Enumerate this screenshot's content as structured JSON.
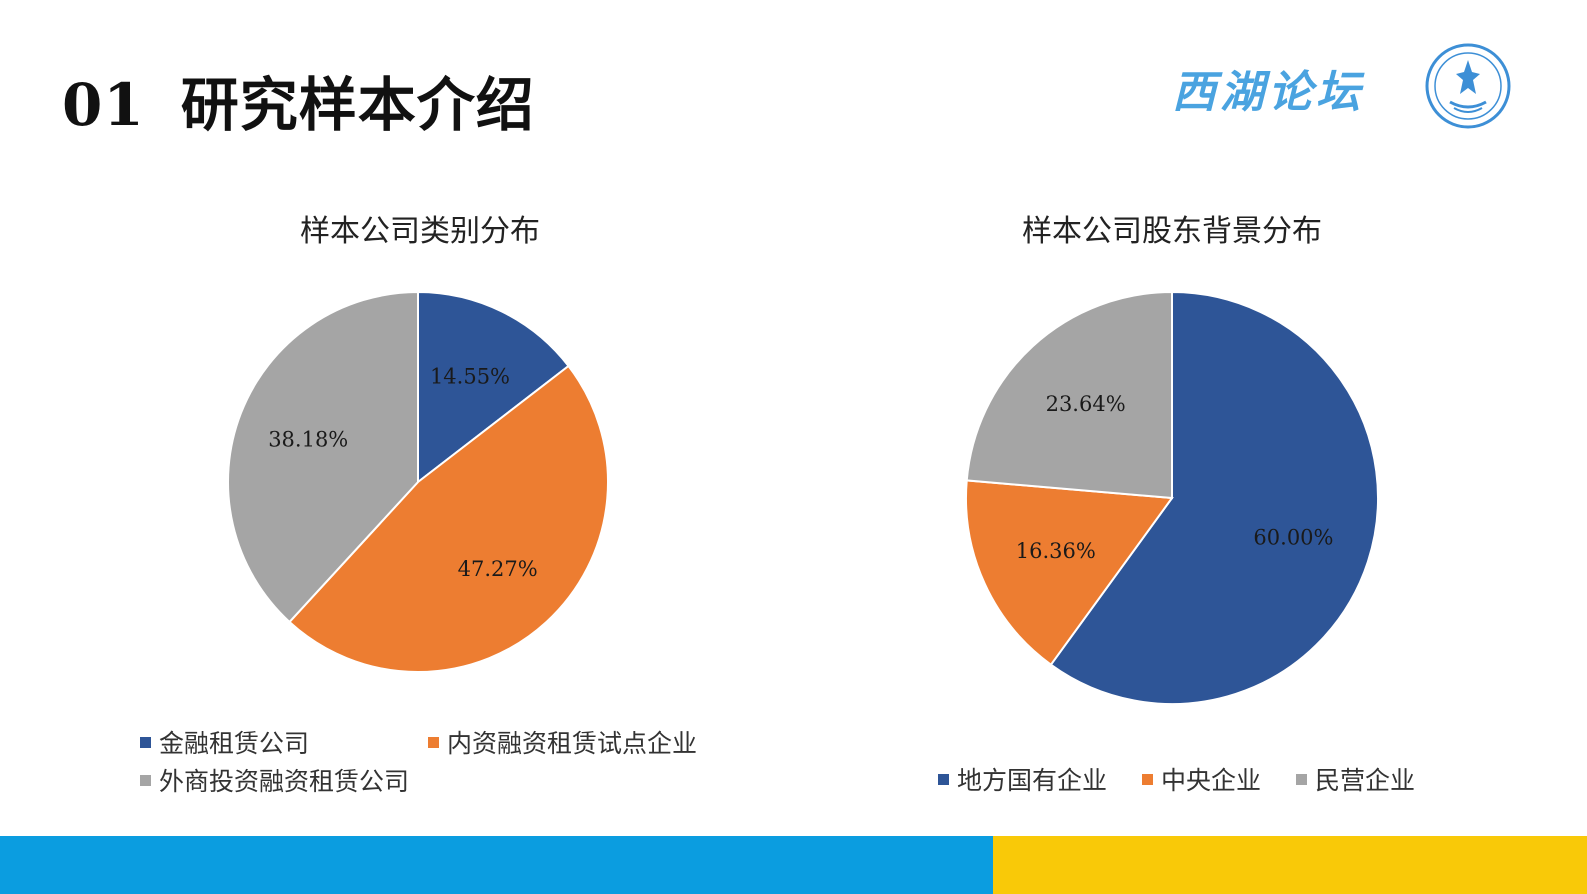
{
  "header": {
    "number": "01",
    "title": "研究样本介绍",
    "brand": "西湖论坛"
  },
  "colors": {
    "blue": "#2e5597",
    "orange": "#ed7d31",
    "gray": "#a5a5a5",
    "footer_blue": "#0b9de0",
    "footer_yellow": "#f9c908",
    "brand_blue": "#4aa3e0"
  },
  "chart_data": [
    {
      "type": "pie",
      "title": "样本公司类别分布",
      "slices": [
        {
          "label": "金融租赁公司",
          "value": 14.55,
          "value_label": "14.55%",
          "color": "#2e5597"
        },
        {
          "label": "内资融资租赁试点企业",
          "value": 47.27,
          "value_label": "47.27%",
          "color": "#ed7d31"
        },
        {
          "label": "外商投资融资租赁公司",
          "value": 38.18,
          "value_label": "38.18%",
          "color": "#a5a5a5"
        }
      ],
      "legend_position": "bottom"
    },
    {
      "type": "pie",
      "title": "样本公司股东背景分布",
      "slices": [
        {
          "label": "地方国有企业",
          "value": 60.0,
          "value_label": "60.00%",
          "color": "#2e5597"
        },
        {
          "label": "中央企业",
          "value": 16.36,
          "value_label": "16.36%",
          "color": "#ed7d31"
        },
        {
          "label": "民营企业",
          "value": 23.64,
          "value_label": "23.64%",
          "color": "#a5a5a5"
        }
      ],
      "legend_position": "bottom"
    }
  ]
}
